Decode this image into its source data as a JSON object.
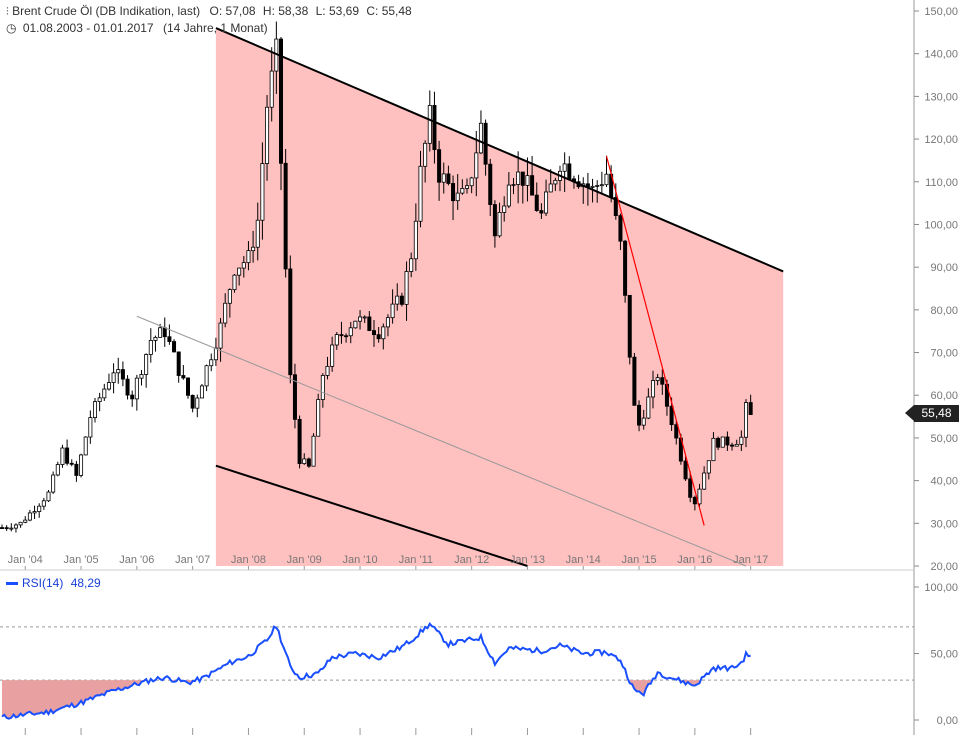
{
  "header": {
    "title": "Brent Crude Öl (DB Indikation, last)",
    "ohlc": {
      "o_label": "O:",
      "o": "57,08",
      "h_label": "H:",
      "h": "58,38",
      "l_label": "L:",
      "l": "53,69",
      "c_label": "C:",
      "c": "55,48"
    },
    "period": "01.08.2003 - 01.01.2017",
    "span": "(14 Jahre, 1 Monat)"
  },
  "price_badge": "55,48",
  "rsi": {
    "label": "RSI(14)",
    "value": "48,29"
  },
  "colors": {
    "up_candle": "#ffffff",
    "down_candle": "#000000",
    "channel_fill": "#ffc0c0",
    "channel_line": "#000000",
    "mid_line": "#999999",
    "down_trend": "#ff0000",
    "rsi_line": "#1a4fff",
    "rsi_fill": "#e8a0a0",
    "grid": "#aaaaaa"
  },
  "chart_data": [
    {
      "type": "candlestick",
      "title": "Brent Crude Öl (DB Indikation, last)",
      "interval": "monthly",
      "x_range": [
        "2003-08",
        "2017-01"
      ],
      "x_tick_labels": [
        "Jan '04",
        "Jan '05",
        "Jan '06",
        "Jan '07",
        "Jan '08",
        "Jan '09",
        "Jan '10",
        "Jan '11",
        "Jan '12",
        "Jan '13",
        "Jan '14",
        "Jan '15",
        "Jan '16",
        "Jan '17"
      ],
      "y_tick_labels": [
        "20,00",
        "30,00",
        "40,00",
        "50,00",
        "60,00",
        "70,00",
        "80,00",
        "90,00",
        "100,00",
        "110,00",
        "120,00",
        "130,00",
        "140,00",
        "150,00"
      ],
      "ylim": [
        20,
        150
      ],
      "y_axis_side": "right",
      "last_close": 55.48,
      "anchor_closes": [
        [
          "2003-08",
          29
        ],
        [
          "2003-12",
          30
        ],
        [
          "2004-06",
          37
        ],
        [
          "2004-09",
          47
        ],
        [
          "2004-12",
          41
        ],
        [
          "2005-03",
          55
        ],
        [
          "2005-08",
          66
        ],
        [
          "2005-12",
          60
        ],
        [
          "2006-04",
          73
        ],
        [
          "2006-07",
          75
        ],
        [
          "2006-12",
          60
        ],
        [
          "2007-01",
          57
        ],
        [
          "2007-07",
          76
        ],
        [
          "2007-10",
          90
        ],
        [
          "2008-01",
          92
        ],
        [
          "2008-03",
          101
        ],
        [
          "2008-05",
          128
        ],
        [
          "2008-07",
          140
        ],
        [
          "2008-10",
          64
        ],
        [
          "2008-12",
          45
        ],
        [
          "2009-02",
          43
        ],
        [
          "2009-05",
          65
        ],
        [
          "2009-08",
          73
        ],
        [
          "2009-12",
          78
        ],
        [
          "2010-05",
          75
        ],
        [
          "2010-10",
          83
        ],
        [
          "2010-12",
          93
        ],
        [
          "2011-02",
          112
        ],
        [
          "2011-04",
          125
        ],
        [
          "2011-06",
          112
        ],
        [
          "2011-10",
          106
        ],
        [
          "2011-12",
          107
        ],
        [
          "2012-03",
          123
        ],
        [
          "2012-06",
          97
        ],
        [
          "2012-09",
          112
        ],
        [
          "2012-12",
          111
        ],
        [
          "2013-04",
          102
        ],
        [
          "2013-08",
          115
        ],
        [
          "2013-12",
          111
        ],
        [
          "2014-03",
          108
        ],
        [
          "2014-06",
          112
        ],
        [
          "2014-09",
          95
        ],
        [
          "2014-12",
          57
        ],
        [
          "2015-01",
          53
        ],
        [
          "2015-05",
          65
        ],
        [
          "2015-08",
          54
        ],
        [
          "2015-12",
          37
        ],
        [
          "2016-01",
          35
        ],
        [
          "2016-05",
          49
        ],
        [
          "2016-09",
          49
        ],
        [
          "2016-11",
          50
        ],
        [
          "2016-12",
          57
        ],
        [
          "2017-01",
          55.48
        ]
      ],
      "channel": {
        "upper": [
          [
            "2007-06",
            146
          ],
          [
            "2017-08",
            89
          ]
        ],
        "lower": [
          [
            "2007-06",
            43.5
          ],
          [
            "2013-01",
            20
          ]
        ],
        "fill_from": "2007-06",
        "fill_to": "2017-08"
      },
      "mid_line": [
        [
          "2006-01",
          78.5
        ],
        [
          "2016-12",
          20
        ]
      ],
      "down_trend_line": [
        [
          "2014-06",
          116
        ],
        [
          "2016-03",
          29.5
        ]
      ]
    },
    {
      "type": "line",
      "title": "RSI(14)",
      "last_value": 48.29,
      "ylim": [
        0,
        100
      ],
      "y_tick_labels": [
        "0,00",
        "50,00",
        "100,00"
      ],
      "reference_lines": [
        30,
        70
      ],
      "anchors": [
        [
          "2003-08",
          2
        ],
        [
          "2004-06",
          6
        ],
        [
          "2005-01",
          13
        ],
        [
          "2005-08",
          22
        ],
        [
          "2006-04",
          30
        ],
        [
          "2006-07",
          32
        ],
        [
          "2006-12",
          28
        ],
        [
          "2007-03",
          31
        ],
        [
          "2007-09",
          43
        ],
        [
          "2008-01",
          48
        ],
        [
          "2008-05",
          60
        ],
        [
          "2008-07",
          71
        ],
        [
          "2008-10",
          40
        ],
        [
          "2008-12",
          32
        ],
        [
          "2009-04",
          35
        ],
        [
          "2009-07",
          47
        ],
        [
          "2009-12",
          50
        ],
        [
          "2010-05",
          47
        ],
        [
          "2010-10",
          55
        ],
        [
          "2010-12",
          60
        ],
        [
          "2011-04",
          72
        ],
        [
          "2011-08",
          57
        ],
        [
          "2012-03",
          62
        ],
        [
          "2012-06",
          43
        ],
        [
          "2012-09",
          54
        ],
        [
          "2013-04",
          52
        ],
        [
          "2013-08",
          56
        ],
        [
          "2014-01",
          50
        ],
        [
          "2014-06",
          51
        ],
        [
          "2014-09",
          45
        ],
        [
          "2014-12",
          22
        ],
        [
          "2015-02",
          20
        ],
        [
          "2015-05",
          36
        ],
        [
          "2015-07",
          33
        ],
        [
          "2015-12",
          27
        ],
        [
          "2016-01",
          26
        ],
        [
          "2016-05",
          39
        ],
        [
          "2016-09",
          39
        ],
        [
          "2016-11",
          43
        ],
        [
          "2016-12",
          49
        ],
        [
          "2017-01",
          48.29
        ]
      ],
      "fill_below": 30
    }
  ]
}
